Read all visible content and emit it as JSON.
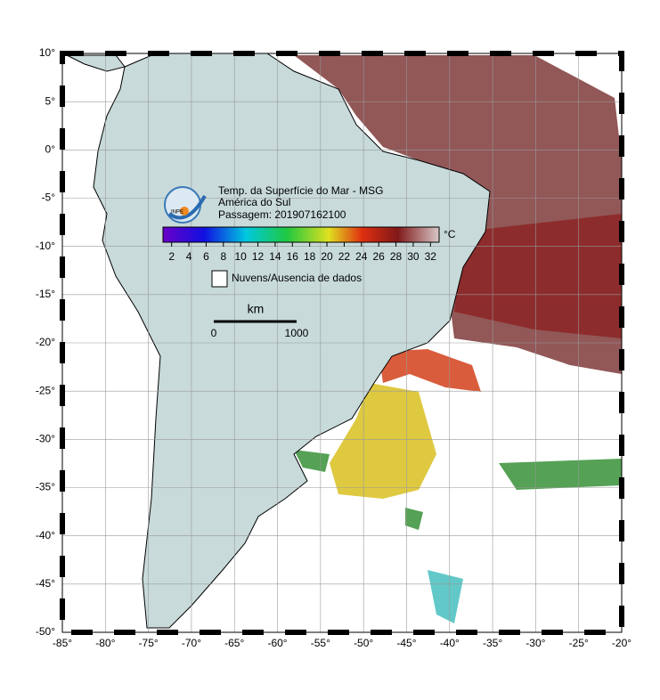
{
  "map": {
    "title_lines": [
      "Temp. da Superfície do Mar - MSG",
      "América do Sul",
      "Passagem: 201907162100"
    ],
    "logo_text": "INPE",
    "lon_range": [
      -85,
      -20
    ],
    "lat_range": [
      10,
      -50
    ],
    "lon_ticks": [
      {
        "value": -85,
        "label": "-85°"
      },
      {
        "value": -80,
        "label": "-80°"
      },
      {
        "value": -75,
        "label": "-75°"
      },
      {
        "value": -70,
        "label": "-70°"
      },
      {
        "value": -65,
        "label": "-65°"
      },
      {
        "value": -60,
        "label": "-60°"
      },
      {
        "value": -55,
        "label": "-55°"
      },
      {
        "value": -50,
        "label": "-50°"
      },
      {
        "value": -45,
        "label": "-45°"
      },
      {
        "value": -40,
        "label": "-40°"
      },
      {
        "value": -35,
        "label": "-35°"
      },
      {
        "value": -30,
        "label": "-30°"
      },
      {
        "value": -25,
        "label": "-25°"
      },
      {
        "value": -20,
        "label": "-20°"
      }
    ],
    "lat_ticks": [
      {
        "value": 10,
        "label": "10°"
      },
      {
        "value": 5,
        "label": "5°"
      },
      {
        "value": 0,
        "label": "0°"
      },
      {
        "value": -5,
        "label": "-5°"
      },
      {
        "value": -10,
        "label": "-10°"
      },
      {
        "value": -15,
        "label": "-15°"
      },
      {
        "value": -20,
        "label": "-20°"
      },
      {
        "value": -25,
        "label": "-25°"
      },
      {
        "value": -30,
        "label": "-30°"
      },
      {
        "value": -35,
        "label": "-35°"
      },
      {
        "value": -40,
        "label": "-40°"
      },
      {
        "value": -45,
        "label": "-45°"
      },
      {
        "value": -50,
        "label": "-50°"
      }
    ],
    "colorbar": {
      "range": [
        1,
        33
      ],
      "ticks": [
        2,
        4,
        6,
        8,
        10,
        12,
        14,
        16,
        18,
        20,
        22,
        24,
        26,
        28,
        30,
        32
      ],
      "unit": "°C"
    },
    "legend": "Nuvens/Ausencia de dados",
    "scale_bar": {
      "unit": "km",
      "start": "0",
      "end": "1000"
    }
  }
}
